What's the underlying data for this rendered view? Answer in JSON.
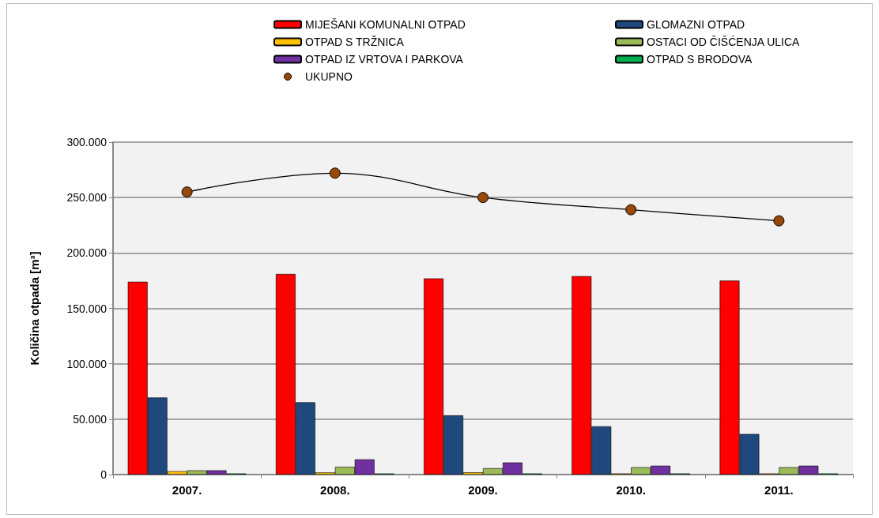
{
  "chart_data": {
    "type": "bar",
    "ylabel": "Količina otpada [m³]",
    "categories": [
      "2007.",
      "2008.",
      "2009.",
      "2010.",
      "2011."
    ],
    "series": [
      {
        "name": "MIJEŠANI KOMUNALNI OTPAD",
        "color": "#ff0000",
        "values": [
          174000,
          181000,
          177000,
          179000,
          175000
        ]
      },
      {
        "name": "GLOMAZNI OTPAD",
        "color": "#1f497d",
        "values": [
          69500,
          65200,
          53400,
          43500,
          36600
        ]
      },
      {
        "name": "OTPAD S TRŽNICA",
        "color": "#ffc000",
        "values": [
          3000,
          1900,
          2000,
          1000,
          1000
        ]
      },
      {
        "name": "OSTACI OD ČIŠĆENJA ULICA",
        "color": "#9bbb59",
        "values": [
          3800,
          6900,
          5700,
          6600,
          6600
        ]
      },
      {
        "name": "OTPAD IZ VRTOVA I PARKOVA",
        "color": "#7030a0",
        "values": [
          3800,
          13700,
          10900,
          8000,
          8000
        ]
      },
      {
        "name": "OTPAD S BRODOVA",
        "color": "#00b050",
        "values": [
          1000,
          1000,
          1000,
          1000,
          1000
        ]
      },
      {
        "name": "UKUPNO",
        "type": "line",
        "color": "#984807",
        "marker": "circle",
        "line_style": "solid",
        "values": [
          255000,
          272000,
          250000,
          239000,
          229000
        ]
      }
    ],
    "ylim": [
      0,
      300000
    ],
    "yticks": [
      {
        "value": 0,
        "label": "0"
      },
      {
        "value": 50000,
        "label": "50.000"
      },
      {
        "value": 100000,
        "label": "100.000"
      },
      {
        "value": 150000,
        "label": "150.000"
      },
      {
        "value": 200000,
        "label": "200.000"
      },
      {
        "value": 250000,
        "label": "250.000"
      },
      {
        "value": 300000,
        "label": "300.000"
      }
    ],
    "grid": "y",
    "legend": "top"
  }
}
